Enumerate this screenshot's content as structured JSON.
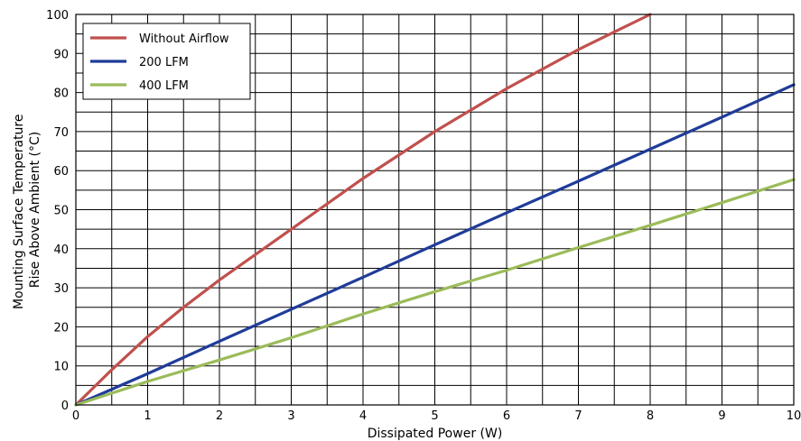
{
  "chart_data": {
    "type": "line",
    "title": "",
    "xlabel": "Dissipated Power (W)",
    "ylabel_lines": [
      "Mounting Surface Temperature",
      "Rise Above  Ambient (°C)"
    ],
    "xlim": [
      0,
      10
    ],
    "ylim": [
      0,
      100
    ],
    "x_ticks": [
      "0",
      "1",
      "2",
      "3",
      "4",
      "5",
      "6",
      "7",
      "8",
      "9",
      "10"
    ],
    "y_ticks": [
      "0",
      "10",
      "20",
      "30",
      "40",
      "50",
      "60",
      "70",
      "80",
      "90",
      "100"
    ],
    "x_grid_step": 0.5,
    "y_grid_step": 5,
    "grid": true,
    "legend_position": "top-left",
    "series": [
      {
        "name": "Without Airflow",
        "color": "#c0504d",
        "x": [
          0,
          0.5,
          1,
          1.5,
          2,
          2.5,
          3,
          3.5,
          4,
          4.5,
          5,
          5.5,
          6,
          6.5,
          7,
          7.5,
          8
        ],
        "y": [
          0,
          9,
          17.5,
          25,
          32,
          38.5,
          45,
          51.5,
          58,
          64,
          70,
          75.5,
          81,
          86,
          91,
          95.5,
          100
        ]
      },
      {
        "name": "200 LFM",
        "color": "#1f3c99",
        "x": [
          0,
          1,
          2,
          3,
          4,
          5,
          6,
          7,
          8,
          9,
          10
        ],
        "y": [
          0,
          8,
          16.3,
          24.5,
          32.7,
          41,
          49.2,
          57.3,
          65.5,
          73.7,
          82
        ]
      },
      {
        "name": "400 LFM",
        "color": "#9bbb59",
        "x": [
          0,
          1,
          2,
          3,
          4,
          5,
          6,
          7,
          8,
          9,
          10
        ],
        "y": [
          0,
          6,
          11.5,
          17.2,
          23.3,
          29,
          34.5,
          40.3,
          46,
          51.8,
          57.7
        ]
      }
    ]
  }
}
